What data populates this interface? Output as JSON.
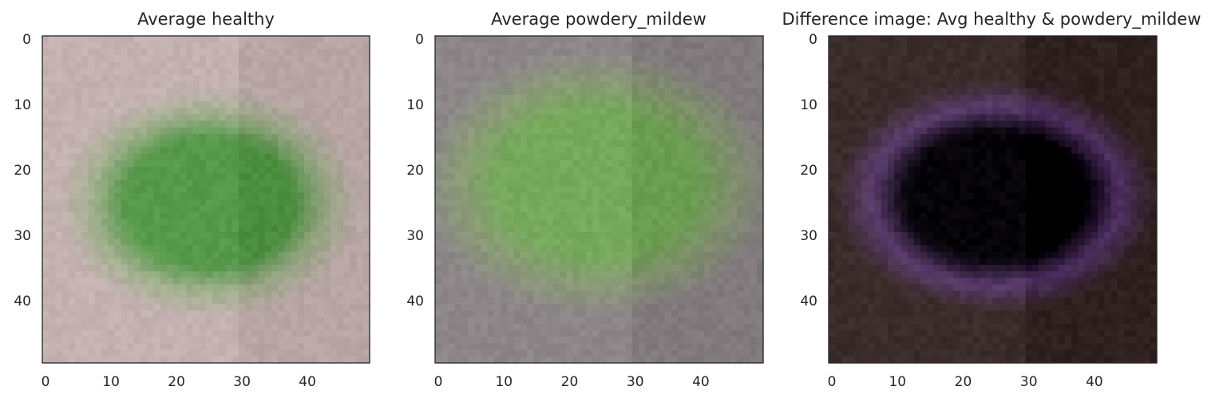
{
  "chart_data": [
    {
      "type": "heatmap",
      "title": "Average healthy",
      "xlim": [
        -0.5,
        49.5
      ],
      "ylim": [
        49.5,
        -0.5
      ],
      "xticks": [
        0,
        10,
        20,
        30,
        40
      ],
      "yticks": [
        0,
        10,
        20,
        30,
        40
      ],
      "grid": false,
      "image": {
        "background_color": "#c3b2b0",
        "blob_center": [
          25,
          25
        ],
        "blob_radius": [
          17,
          13
        ],
        "blob_color": "#56994a",
        "blob_edge_color": "#a2b08e"
      }
    },
    {
      "type": "heatmap",
      "title": "Average powdery_mildew",
      "xlim": [
        -0.5,
        49.5
      ],
      "ylim": [
        49.5,
        -0.5
      ],
      "xticks": [
        0,
        10,
        20,
        30,
        40
      ],
      "yticks": [
        0,
        10,
        20,
        30,
        40
      ],
      "grid": false,
      "image": {
        "background_color": "#8c8688",
        "blob_center": [
          24,
          22
        ],
        "blob_radius": [
          20,
          15
        ],
        "blob_color": "#77a95d",
        "blob_edge_color": "#8b9a78"
      }
    },
    {
      "type": "heatmap",
      "title": "Difference image: Avg healthy & powdery_mildew",
      "xlim": [
        -0.5,
        49.5
      ],
      "ylim": [
        49.5,
        -0.5
      ],
      "xticks": [
        0,
        10,
        20,
        30,
        40
      ],
      "yticks": [
        0,
        10,
        20,
        30,
        40
      ],
      "grid": false,
      "image": {
        "background_color": "#3b2c2c",
        "blob_center": [
          25,
          24
        ],
        "blob_radius": [
          18,
          13
        ],
        "blob_color": "#060309",
        "blob_edge_color": "#5a3c6d"
      }
    }
  ]
}
